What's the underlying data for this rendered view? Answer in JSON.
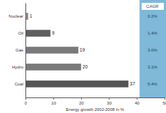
{
  "chart_data": {
    "type": "bar",
    "orientation": "horizontal",
    "categories": [
      "Nuclear",
      "Oil",
      "Gas",
      "Hydro",
      "Coal"
    ],
    "values": [
      1,
      9,
      19,
      20,
      37
    ],
    "colors": [
      "#8c8c8c",
      "#5f5f5f",
      "#7a7a7a",
      "#7a7a7a",
      "#555555"
    ],
    "x_label": "Energy growth 2002-2008 in %",
    "xlim": [
      0,
      50
    ],
    "xticks": [
      0,
      10,
      20,
      30,
      40,
      50
    ],
    "grid": false,
    "data_labels": true,
    "cagr_title": "CAGR",
    "cagr_values": [
      0.2,
      1.4,
      3.0,
      3.1,
      5.4
    ],
    "cagr_labels": [
      "0.2%",
      "1.4%",
      "3.0%",
      "3.1%",
      "5.4%"
    ]
  }
}
